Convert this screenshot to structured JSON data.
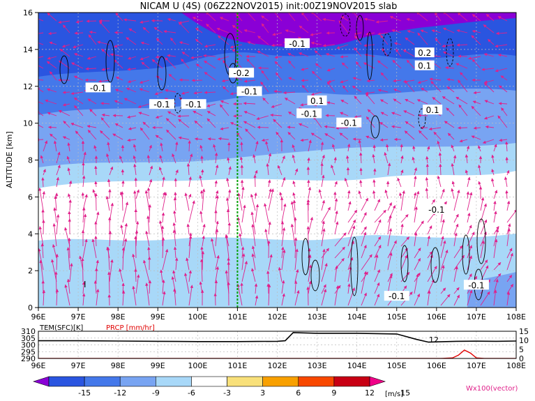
{
  "chart_data": [
    {
      "type": "heatmap",
      "title": "NICAM U (4S) (06Z22NOV2015) init:00Z19NOV2015 slab",
      "ylabel": "ALTITUDE [km]",
      "xlabel": "",
      "x_ticks": [
        "96E",
        "97E",
        "98E",
        "99E",
        "100E",
        "101E",
        "102E",
        "103E",
        "104E",
        "105E",
        "106E",
        "107E",
        "108E"
      ],
      "y_ticks": [
        "0",
        "2",
        "4",
        "6",
        "8",
        "10",
        "12",
        "14",
        "16"
      ],
      "xlim": [
        96,
        108
      ],
      "ylim": [
        0,
        16
      ],
      "grid": true,
      "colorbar": {
        "labels": [
          "-15",
          "-12",
          "-9",
          "-6",
          "-3",
          "3",
          "6",
          "9",
          "12",
          "15"
        ],
        "unit": "[m/s]",
        "colors": [
          "#8a00d6",
          "#2a55e0",
          "#4478ea",
          "#78a4f2",
          "#a8d8f8",
          "#ffffff",
          "#f8e07a",
          "#f8a000",
          "#f84800",
          "#c80014",
          "#f00088"
        ]
      },
      "vector_label": "Wx100(vector)",
      "highlight_line_x": 101,
      "contour_labels": [
        {
          "text": "-0.1",
          "x": 97.5,
          "y": 11.9
        },
        {
          "text": "-0.1",
          "x": 99.1,
          "y": 11.0
        },
        {
          "text": "-0.1",
          "x": 99.9,
          "y": 11.0
        },
        {
          "text": "-0.2",
          "x": 101.1,
          "y": 12.7
        },
        {
          "text": "-0.1",
          "x": 101.3,
          "y": 11.7
        },
        {
          "text": "-0.1",
          "x": 102.5,
          "y": 14.3
        },
        {
          "text": "0.1",
          "x": 103.0,
          "y": 11.2
        },
        {
          "text": "-0.1",
          "x": 102.8,
          "y": 10.5
        },
        {
          "text": "-0.1",
          "x": 103.8,
          "y": 10.0
        },
        {
          "text": "0.2",
          "x": 105.7,
          "y": 13.8
        },
        {
          "text": "0.1",
          "x": 105.7,
          "y": 13.1
        },
        {
          "text": "0.1",
          "x": 105.9,
          "y": 10.7
        },
        {
          "text": "-0.1",
          "x": 106.0,
          "y": 5.3
        },
        {
          "text": "-0.1",
          "x": 105.0,
          "y": 0.6
        },
        {
          "text": "-0.1",
          "x": 107.0,
          "y": 1.2
        }
      ],
      "colors": {
        "highlight_line": "#00a000",
        "vectors": "#e0208a",
        "contours": "#000000"
      }
    },
    {
      "type": "line",
      "left_label": "TEM(SFC)[K]",
      "right_label": "PRCP [mm/hr]",
      "x_ticks": [
        "96E",
        "97E",
        "98E",
        "99E",
        "100E",
        "101E",
        "102E",
        "103E",
        "104E",
        "105E",
        "106E",
        "107E",
        "108E"
      ],
      "left_y_ticks": [
        "290",
        "295",
        "300",
        "305",
        "310"
      ],
      "right_y_ticks": [
        "0",
        "5",
        "10",
        "15"
      ],
      "left_ylim": [
        290,
        310
      ],
      "right_ylim": [
        0,
        15
      ],
      "series": [
        {
          "name": "TEM(SFC)[K]",
          "color": "#000000",
          "x": [
            96,
            97,
            98,
            99,
            100,
            101,
            101.5,
            102,
            102.2,
            102.4,
            103,
            104,
            105,
            105.5,
            105.8,
            106,
            106.5,
            107,
            107.5,
            108
          ],
          "values": [
            303,
            303,
            302.8,
            302.6,
            302.4,
            302.4,
            302.5,
            302.6,
            303,
            309,
            308.5,
            308.5,
            308,
            304,
            302,
            302.2,
            302.6,
            302.7,
            302.6,
            302.8
          ]
        },
        {
          "name": "PRCP [mm/hr]",
          "color": "#e00000",
          "x": [
            96,
            104,
            105,
            105.8,
            106.1,
            106.4,
            106.55,
            106.7,
            106.85,
            107,
            107.2,
            108
          ],
          "values": [
            0,
            0,
            0,
            0,
            0,
            0.3,
            1.8,
            4.6,
            3,
            0.3,
            0,
            0
          ]
        }
      ],
      "annotation": "12"
    }
  ],
  "overlay_label": "I"
}
